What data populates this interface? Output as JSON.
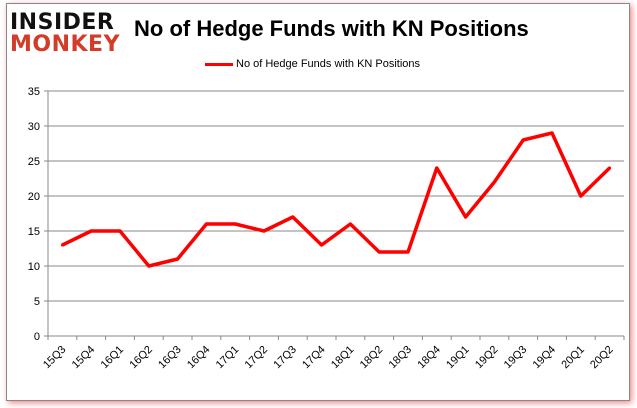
{
  "logo": {
    "line1": "INSIDER",
    "line2": "MONKEY"
  },
  "chart_data": {
    "type": "line",
    "title": "No of Hedge Funds with KN Positions",
    "categories": [
      "15Q3",
      "15Q4",
      "16Q1",
      "16Q2",
      "16Q3",
      "16Q4",
      "17Q1",
      "17Q2",
      "17Q3",
      "17Q4",
      "18Q1",
      "18Q2",
      "18Q3",
      "18Q4",
      "19Q1",
      "19Q2",
      "19Q3",
      "19Q4",
      "20Q1",
      "20Q2"
    ],
    "series": [
      {
        "name": "No of Hedge Funds with KN Positions",
        "color": "#ff0000",
        "values": [
          13,
          15,
          15,
          10,
          11,
          16,
          16,
          15,
          17,
          13,
          16,
          12,
          12,
          24,
          17,
          22,
          28,
          29,
          20,
          24
        ]
      }
    ],
    "ylim": [
      0,
      35
    ],
    "yticks": [
      0,
      5,
      10,
      15,
      20,
      25,
      30,
      35
    ],
    "grid": true,
    "legend": "top"
  }
}
